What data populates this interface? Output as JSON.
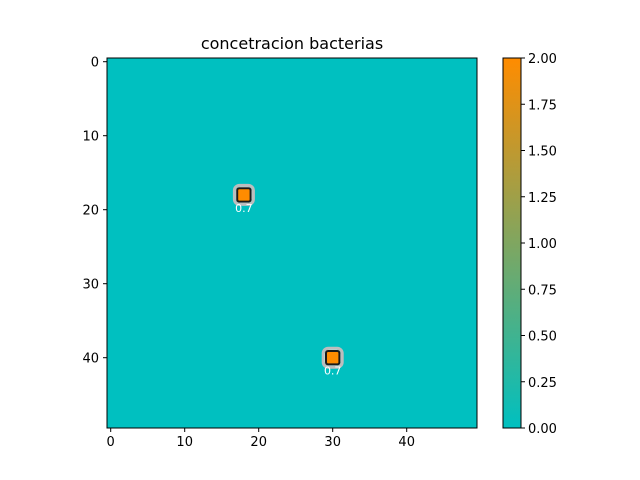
{
  "chart_data": {
    "type": "heatmap",
    "title": "concetracion bacterias",
    "xlabel": "",
    "ylabel": "",
    "grid_size": [
      50,
      50
    ],
    "xlim": [
      -0.5,
      49.5
    ],
    "ylim": [
      49.5,
      -0.5
    ],
    "xticks": [
      0,
      10,
      20,
      30,
      40
    ],
    "yticks": [
      0,
      10,
      20,
      30,
      40
    ],
    "default_value": 0,
    "cells": [
      {
        "x": 18,
        "y": 18,
        "value": 2
      },
      {
        "x": 30,
        "y": 40,
        "value": 2
      }
    ],
    "contour_level": 0.7,
    "contour_labels": [
      {
        "x": 18,
        "y": 18,
        "text": "0.7"
      },
      {
        "x": 30,
        "y": 40,
        "text": "0.7"
      }
    ],
    "colorbar": {
      "min": 0,
      "max": 2,
      "ticks": [
        "0.00",
        "0.25",
        "0.50",
        "0.75",
        "1.00",
        "1.25",
        "1.50",
        "1.75",
        "2.00"
      ],
      "colors": [
        "#00c0c0",
        "#ff8c00"
      ]
    },
    "grid": false,
    "legend": "none"
  }
}
